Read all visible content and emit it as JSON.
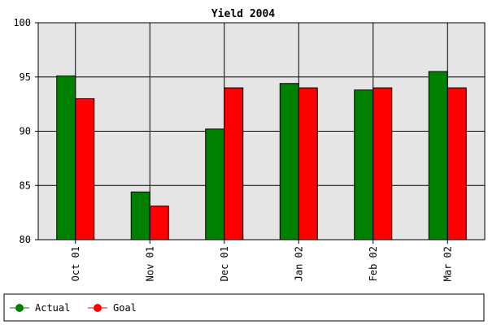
{
  "chart_data": {
    "type": "bar",
    "title": "Yield 2004",
    "xlabel": "",
    "ylabel": "",
    "categories": [
      "Oct 01",
      "Nov 01",
      "Dec 01",
      "Jan 02",
      "Feb 02",
      "Mar 02"
    ],
    "ylim": [
      80,
      100
    ],
    "yticks": [
      "80",
      "85",
      "90",
      "95",
      "100"
    ],
    "grid": true,
    "legend_position": "bottom",
    "series": [
      {
        "name": "Actual",
        "color": "#008000",
        "values": [
          95.1,
          84.4,
          90.2,
          94.4,
          93.8,
          95.5
        ]
      },
      {
        "name": "Goal",
        "color": "#ff0000",
        "values": [
          93.0,
          83.1,
          94.0,
          94.0,
          94.0,
          94.0
        ]
      }
    ],
    "plot_background": "#e5e5e5",
    "legend": [
      {
        "label": "Actual",
        "color": "#008000"
      },
      {
        "label": "Goal",
        "color": "#ff0000"
      }
    ]
  }
}
